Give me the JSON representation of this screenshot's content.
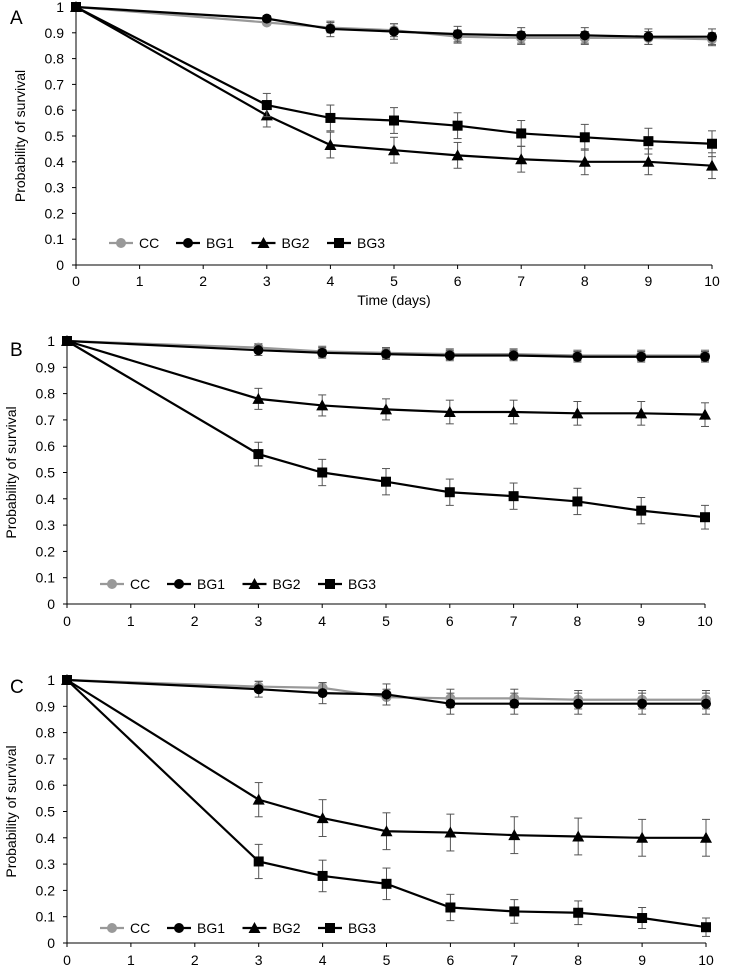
{
  "chart_data": [
    {
      "panel_label": "A",
      "type": "line",
      "title": "",
      "xlabel": "Time (days)",
      "ylabel": "Probability of survival",
      "xlim": [
        0,
        10
      ],
      "ylim": [
        0,
        1
      ],
      "x_ticks": [
        "0",
        "1",
        "2",
        "3",
        "4",
        "5",
        "6",
        "7",
        "8",
        "9",
        "10"
      ],
      "y_ticks": [
        "0",
        "0.1",
        "0.2",
        "0.3",
        "0.4",
        "0.5",
        "0.6",
        "0.7",
        "0.8",
        "0.9",
        "1"
      ],
      "x": [
        0,
        3,
        4,
        5,
        6,
        7,
        8,
        9,
        10
      ],
      "legend_position": "bottom-left",
      "series": [
        {
          "name": "CC",
          "marker": "circle",
          "color": "#999999",
          "values": [
            1,
            0.94,
            0.92,
            0.91,
            0.885,
            0.88,
            0.88,
            0.88,
            0.875
          ],
          "errors": [
            0,
            0.01,
            0.02,
            0.025,
            0.025,
            0.025,
            0.025,
            0.025,
            0.025
          ]
        },
        {
          "name": "BG1",
          "marker": "circle",
          "color": "#000000",
          "values": [
            1,
            0.955,
            0.915,
            0.905,
            0.895,
            0.89,
            0.89,
            0.885,
            0.885
          ],
          "errors": [
            0,
            0.012,
            0.03,
            0.03,
            0.03,
            0.03,
            0.03,
            0.03,
            0.03
          ]
        },
        {
          "name": "BG2",
          "marker": "triangle",
          "color": "#000000",
          "values": [
            1,
            0.58,
            0.465,
            0.445,
            0.425,
            0.41,
            0.4,
            0.4,
            0.385
          ],
          "errors": [
            0,
            0.045,
            0.05,
            0.05,
            0.05,
            0.05,
            0.05,
            0.05,
            0.05
          ]
        },
        {
          "name": "BG3",
          "marker": "square",
          "color": "#000000",
          "values": [
            1,
            0.62,
            0.57,
            0.56,
            0.54,
            0.51,
            0.495,
            0.48,
            0.47
          ],
          "errors": [
            0,
            0.045,
            0.05,
            0.05,
            0.05,
            0.05,
            0.05,
            0.05,
            0.05
          ]
        }
      ]
    },
    {
      "panel_label": "B",
      "type": "line",
      "title": "",
      "xlabel": "",
      "ylabel": "Probability of survival",
      "xlim": [
        0,
        10
      ],
      "ylim": [
        0,
        1
      ],
      "x_ticks": [
        "0",
        "1",
        "2",
        "3",
        "4",
        "5",
        "6",
        "7",
        "8",
        "9",
        "10"
      ],
      "y_ticks": [
        "0",
        "0.1",
        "0.2",
        "0.3",
        "0.4",
        "0.5",
        "0.6",
        "0.7",
        "0.8",
        "0.9",
        "1"
      ],
      "x": [
        0,
        3,
        4,
        5,
        6,
        7,
        8,
        9,
        10
      ],
      "legend_position": "bottom-left",
      "series": [
        {
          "name": "CC",
          "marker": "circle",
          "color": "#999999",
          "values": [
            1,
            0.975,
            0.96,
            0.955,
            0.95,
            0.95,
            0.945,
            0.945,
            0.945
          ],
          "errors": [
            0,
            0.015,
            0.02,
            0.02,
            0.02,
            0.02,
            0.02,
            0.02,
            0.02
          ]
        },
        {
          "name": "BG1",
          "marker": "circle",
          "color": "#000000",
          "values": [
            1,
            0.965,
            0.955,
            0.95,
            0.945,
            0.945,
            0.94,
            0.94,
            0.94
          ],
          "errors": [
            0,
            0.02,
            0.02,
            0.02,
            0.02,
            0.02,
            0.02,
            0.02,
            0.02
          ]
        },
        {
          "name": "BG2",
          "marker": "triangle",
          "color": "#000000",
          "values": [
            1,
            0.78,
            0.755,
            0.74,
            0.73,
            0.73,
            0.725,
            0.725,
            0.72
          ],
          "errors": [
            0,
            0.04,
            0.04,
            0.04,
            0.045,
            0.045,
            0.045,
            0.045,
            0.045
          ]
        },
        {
          "name": "BG3",
          "marker": "square",
          "color": "#000000",
          "values": [
            1,
            0.57,
            0.5,
            0.465,
            0.425,
            0.41,
            0.39,
            0.355,
            0.33
          ],
          "errors": [
            0,
            0.045,
            0.05,
            0.05,
            0.05,
            0.05,
            0.05,
            0.05,
            0.045
          ]
        }
      ]
    },
    {
      "panel_label": "C",
      "type": "line",
      "title": "",
      "xlabel": "",
      "ylabel": "Probability of survival",
      "xlim": [
        0,
        10
      ],
      "ylim": [
        0,
        1
      ],
      "x_ticks": [
        "0",
        "1",
        "2",
        "3",
        "4",
        "5",
        "6",
        "7",
        "8",
        "9",
        "10"
      ],
      "y_ticks": [
        "0",
        "0.1",
        "0.2",
        "0.3",
        "0.4",
        "0.5",
        "0.6",
        "0.7",
        "0.8",
        "0.9",
        "1"
      ],
      "x": [
        0,
        3,
        4,
        5,
        6,
        7,
        8,
        9,
        10
      ],
      "legend_position": "bottom-left",
      "series": [
        {
          "name": "CC",
          "marker": "circle",
          "color": "#999999",
          "values": [
            1,
            0.975,
            0.97,
            0.935,
            0.93,
            0.93,
            0.925,
            0.925,
            0.925
          ],
          "errors": [
            0,
            0.02,
            0.02,
            0.03,
            0.035,
            0.035,
            0.035,
            0.035,
            0.035
          ]
        },
        {
          "name": "BG1",
          "marker": "circle",
          "color": "#000000",
          "values": [
            1,
            0.965,
            0.95,
            0.945,
            0.91,
            0.91,
            0.91,
            0.91,
            0.91
          ],
          "errors": [
            0,
            0.03,
            0.04,
            0.04,
            0.04,
            0.04,
            0.04,
            0.04,
            0.04
          ]
        },
        {
          "name": "BG2",
          "marker": "triangle",
          "color": "#000000",
          "values": [
            1,
            0.545,
            0.475,
            0.425,
            0.42,
            0.41,
            0.405,
            0.4,
            0.4
          ],
          "errors": [
            0,
            0.065,
            0.07,
            0.07,
            0.07,
            0.07,
            0.07,
            0.07,
            0.07
          ]
        },
        {
          "name": "BG3",
          "marker": "square",
          "color": "#000000",
          "values": [
            1,
            0.31,
            0.255,
            0.225,
            0.135,
            0.12,
            0.115,
            0.095,
            0.06
          ],
          "errors": [
            0,
            0.065,
            0.06,
            0.06,
            0.05,
            0.045,
            0.045,
            0.04,
            0.035
          ]
        }
      ]
    }
  ]
}
